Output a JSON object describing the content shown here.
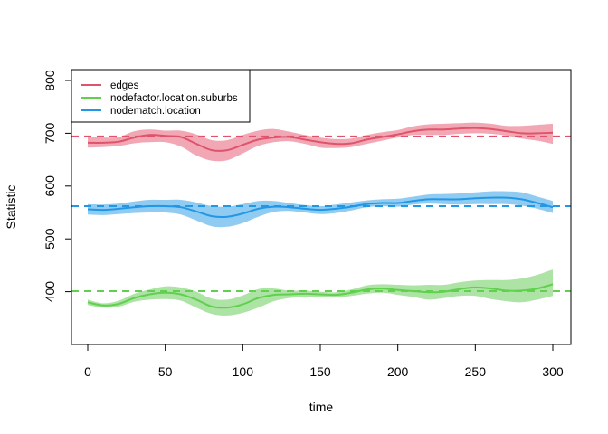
{
  "chart_data": {
    "type": "line",
    "xlabel": "time",
    "ylabel": "Statistic",
    "xlim": [
      0,
      300
    ],
    "ylim": [
      300,
      800
    ],
    "xticks": [
      0,
      50,
      100,
      150,
      200,
      250,
      300
    ],
    "yticks": [
      400,
      500,
      600,
      700,
      800
    ],
    "legend_position": "top-left",
    "grid": false,
    "series": [
      {
        "name": "edges",
        "color": "#DF536B",
        "band_color": "#F2A7B5",
        "target": 694,
        "x": [
          0,
          10,
          20,
          30,
          40,
          50,
          60,
          70,
          80,
          90,
          100,
          110,
          120,
          130,
          140,
          150,
          160,
          170,
          180,
          190,
          200,
          210,
          220,
          230,
          240,
          250,
          260,
          270,
          280,
          290,
          300
        ],
        "y": [
          682,
          682,
          684,
          692,
          697,
          695,
          693,
          680,
          668,
          668,
          678,
          688,
          692,
          693,
          688,
          683,
          680,
          681,
          688,
          693,
          698,
          704,
          707,
          707,
          709,
          710,
          708,
          704,
          700,
          700,
          701
        ],
        "lower": [
          673,
          674,
          676,
          681,
          683,
          683,
          675,
          658,
          648,
          649,
          662,
          676,
          683,
          685,
          680,
          673,
          672,
          674,
          680,
          686,
          692,
          697,
          697,
          697,
          699,
          700,
          699,
          696,
          690,
          686,
          680
        ],
        "upper": [
          693,
          692,
          693,
          704,
          707,
          705,
          705,
          698,
          687,
          687,
          697,
          705,
          708,
          703,
          697,
          692,
          689,
          690,
          697,
          702,
          706,
          713,
          717,
          718,
          719,
          720,
          718,
          714,
          714,
          716,
          718
        ]
      },
      {
        "name": "nodefactor.location.suburbs",
        "color": "#61D04F",
        "band_color": "#ADE3A4",
        "target": 401,
        "x": [
          0,
          10,
          20,
          30,
          40,
          50,
          60,
          70,
          80,
          90,
          100,
          110,
          120,
          130,
          140,
          150,
          160,
          170,
          180,
          190,
          200,
          210,
          220,
          230,
          240,
          250,
          260,
          270,
          280,
          290,
          300
        ],
        "y": [
          380,
          374,
          377,
          388,
          395,
          398,
          395,
          385,
          372,
          370,
          376,
          388,
          394,
          395,
          396,
          395,
          394,
          398,
          404,
          406,
          403,
          401,
          399,
          400,
          405,
          408,
          406,
          402,
          402,
          406,
          414
        ],
        "lower": [
          375,
          370,
          372,
          381,
          385,
          386,
          383,
          370,
          358,
          355,
          360,
          370,
          382,
          388,
          390,
          389,
          389,
          392,
          396,
          398,
          394,
          390,
          385,
          388,
          392,
          392,
          386,
          382,
          380,
          385,
          392
        ],
        "upper": [
          385,
          378,
          383,
          396,
          404,
          410,
          408,
          400,
          387,
          385,
          393,
          405,
          406,
          402,
          402,
          400,
          399,
          404,
          412,
          414,
          413,
          412,
          413,
          413,
          418,
          421,
          422,
          422,
          425,
          432,
          442
        ]
      },
      {
        "name": "nodematch.location",
        "color": "#2297E6",
        "band_color": "#90CBF2",
        "target": 562,
        "x": [
          0,
          10,
          20,
          30,
          40,
          50,
          60,
          70,
          80,
          90,
          100,
          110,
          120,
          130,
          140,
          150,
          160,
          170,
          180,
          190,
          200,
          210,
          220,
          230,
          240,
          250,
          260,
          270,
          280,
          290,
          300
        ],
        "y": [
          556,
          555,
          557,
          560,
          562,
          562,
          560,
          552,
          543,
          542,
          548,
          557,
          561,
          560,
          557,
          555,
          557,
          561,
          566,
          568,
          568,
          572,
          575,
          575,
          575,
          577,
          578,
          578,
          575,
          568,
          560
        ],
        "lower": [
          546,
          545,
          547,
          549,
          550,
          550,
          546,
          535,
          524,
          523,
          530,
          542,
          551,
          553,
          550,
          547,
          549,
          554,
          560,
          562,
          561,
          565,
          567,
          566,
          565,
          566,
          566,
          566,
          563,
          557,
          549
        ],
        "upper": [
          566,
          565,
          567,
          571,
          574,
          574,
          574,
          569,
          562,
          561,
          566,
          572,
          572,
          568,
          564,
          562,
          565,
          569,
          573,
          575,
          576,
          580,
          584,
          585,
          586,
          588,
          590,
          590,
          588,
          580,
          572
        ]
      }
    ]
  }
}
